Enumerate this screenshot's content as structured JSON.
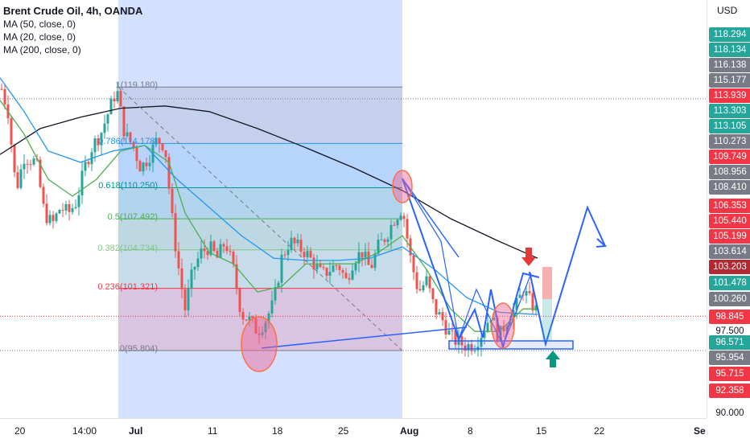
{
  "legend": {
    "title": "Brent Crude Oil, 4h, OANDA",
    "indicators": [
      "MA (50, close, 0)",
      "MA (20, close, 0)",
      "MA (200, close, 0)"
    ]
  },
  "currency": "USD",
  "colors": {
    "blue_accent": "#2962ff",
    "red": "#ef5350",
    "green": "#26a69a"
  },
  "fib_levels": [
    {
      "label": "1(119.180)",
      "price": 119.18,
      "color": "#787b86"
    },
    {
      "label": "0.786(114.178)",
      "price": 114.178,
      "color": "#2196f3"
    },
    {
      "label": "0.618(110.250)",
      "price": 110.25,
      "color": "#009688"
    },
    {
      "label": "0.5(107.492)",
      "price": 107.492,
      "color": "#4caf50"
    },
    {
      "label": "0.382(104.734)",
      "price": 104.734,
      "color": "#81c784"
    },
    {
      "label": "0.236(101.321)",
      "price": 101.321,
      "color": "#f23645"
    },
    {
      "label": "0(95.804)",
      "price": 95.804,
      "color": "#787b86"
    }
  ],
  "price_labels": [
    {
      "text": "118.294",
      "bg": "#26a69a"
    },
    {
      "text": "118.134",
      "bg": "#26a69a"
    },
    {
      "text": "116.138",
      "bg": "#787b86"
    },
    {
      "text": "115.177",
      "bg": "#787b86"
    },
    {
      "text": "113.939",
      "bg": "#f23645"
    },
    {
      "text": "113.303",
      "bg": "#26a69a"
    },
    {
      "text": "113.105",
      "bg": "#26a69a"
    },
    {
      "text": "110.273",
      "bg": "#787b86"
    },
    {
      "text": "109.749",
      "bg": "#f23645"
    },
    {
      "text": "108.956",
      "bg": "#787b86"
    },
    {
      "text": "108.410",
      "bg": "#787b86"
    },
    {
      "text": "106.353",
      "bg": "#f23645"
    },
    {
      "text": "105.440",
      "bg": "#f23645"
    },
    {
      "text": "105.199",
      "bg": "#f23645"
    },
    {
      "text": "103.614",
      "bg": "#787b86"
    },
    {
      "text": "103.203",
      "bg": "#b22833"
    },
    {
      "text": "101.478",
      "bg": "#26a69a"
    },
    {
      "text": "100.260",
      "bg": "#787b86"
    },
    {
      "text": "98.845",
      "bg": "#f23645"
    },
    {
      "text": "97.500",
      "bg": ""
    },
    {
      "text": "96.571",
      "bg": "#26a69a"
    },
    {
      "text": "95.954",
      "bg": "#787b86"
    },
    {
      "text": "95.715",
      "bg": "#f23645"
    },
    {
      "text": "92.358",
      "bg": "#f23645"
    },
    {
      "text": "90.000",
      "bg": ""
    }
  ],
  "time_labels": [
    {
      "text": "20",
      "bold": false
    },
    {
      "text": "14:00",
      "bold": false
    },
    {
      "text": "Jul",
      "bold": true
    },
    {
      "text": "11",
      "bold": false
    },
    {
      "text": "18",
      "bold": false
    },
    {
      "text": "25",
      "bold": false
    },
    {
      "text": "Aug",
      "bold": true
    },
    {
      "text": "8",
      "bold": false
    },
    {
      "text": "15",
      "bold": false
    },
    {
      "text": "22",
      "bold": false
    },
    {
      "text": "Se",
      "bold": true
    }
  ]
}
